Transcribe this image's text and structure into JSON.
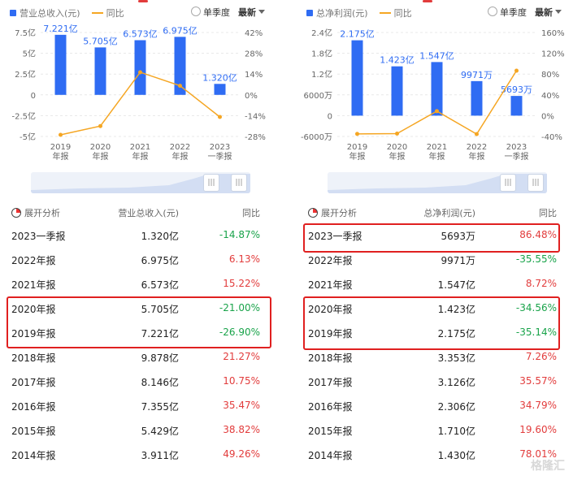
{
  "left": {
    "legend_bar": "营业总收入(元)",
    "legend_line": "同比",
    "radio_label": "单季度",
    "latest_label": "最新",
    "table_title": "展开分析",
    "table_col_value": "营业总收入(元)",
    "table_col_yoy": "同比",
    "rows": [
      {
        "period": "2023一季报",
        "value": "1.320亿",
        "yoy": "-14.87%",
        "sign": "neg"
      },
      {
        "period": "2022年报",
        "value": "6.975亿",
        "yoy": "6.13%",
        "sign": "pos"
      },
      {
        "period": "2021年报",
        "value": "6.573亿",
        "yoy": "15.22%",
        "sign": "pos"
      },
      {
        "period": "2020年报",
        "value": "5.705亿",
        "yoy": "-21.00%",
        "sign": "neg"
      },
      {
        "period": "2019年报",
        "value": "7.221亿",
        "yoy": "-26.90%",
        "sign": "neg"
      },
      {
        "period": "2018年报",
        "value": "9.878亿",
        "yoy": "21.27%",
        "sign": "pos"
      },
      {
        "period": "2017年报",
        "value": "8.146亿",
        "yoy": "10.75%",
        "sign": "pos"
      },
      {
        "period": "2016年报",
        "value": "7.355亿",
        "yoy": "35.47%",
        "sign": "pos"
      },
      {
        "period": "2015年报",
        "value": "5.429亿",
        "yoy": "38.82%",
        "sign": "pos"
      },
      {
        "period": "2014年报",
        "value": "3.911亿",
        "yoy": "49.26%",
        "sign": "pos"
      }
    ]
  },
  "right": {
    "legend_bar": "总净利润(元)",
    "legend_line": "同比",
    "radio_label": "单季度",
    "latest_label": "最新",
    "table_title": "展开分析",
    "table_col_value": "总净利润(元)",
    "table_col_yoy": "同比",
    "rows": [
      {
        "period": "2023一季报",
        "value": "5693万",
        "yoy": "86.48%",
        "sign": "pos"
      },
      {
        "period": "2022年报",
        "value": "9971万",
        "yoy": "-35.55%",
        "sign": "neg"
      },
      {
        "period": "2021年报",
        "value": "1.547亿",
        "yoy": "8.72%",
        "sign": "pos"
      },
      {
        "period": "2020年报",
        "value": "1.423亿",
        "yoy": "-34.56%",
        "sign": "neg"
      },
      {
        "period": "2019年报",
        "value": "2.175亿",
        "yoy": "-35.14%",
        "sign": "neg"
      },
      {
        "period": "2018年报",
        "value": "3.353亿",
        "yoy": "7.26%",
        "sign": "pos"
      },
      {
        "period": "2017年报",
        "value": "3.126亿",
        "yoy": "35.57%",
        "sign": "pos"
      },
      {
        "period": "2016年报",
        "value": "2.306亿",
        "yoy": "34.79%",
        "sign": "pos"
      },
      {
        "period": "2015年报",
        "value": "1.710亿",
        "yoy": "19.60%",
        "sign": "pos"
      },
      {
        "period": "2014年报",
        "value": "1.430亿",
        "yoy": "78.01%",
        "sign": "pos"
      }
    ]
  },
  "watermark": "格隆汇",
  "colors": {
    "bar": "#2f6cf3",
    "line": "#f5a623",
    "pos": "#e23c3c",
    "neg": "#19a34a",
    "highlight": "#e02020"
  },
  "chart_data": [
    {
      "type": "bar",
      "categories": [
        "2019\n年报",
        "2020\n年报",
        "2021\n年报",
        "2022\n年报",
        "2023\n一季报"
      ],
      "series": [
        {
          "name": "营业总收入(元)",
          "values": [
            7.221,
            5.705,
            6.573,
            6.975,
            1.32
          ],
          "labels": [
            "7.221亿",
            "5.705亿",
            "6.573亿",
            "6.975亿",
            "1.320亿"
          ],
          "unit": "亿"
        },
        {
          "name": "同比",
          "type": "line",
          "values": [
            -26.9,
            -21.0,
            15.22,
            6.13,
            -14.87
          ],
          "unit": "%"
        }
      ],
      "ylim_left": [
        -5,
        7.5
      ],
      "ylim_right": [
        -28,
        42
      ],
      "yticks_left": [
        "7.5亿",
        "5亿",
        "2.5亿",
        "0",
        "-2.5亿",
        "-5亿"
      ],
      "yticks_right": [
        "42%",
        "28%",
        "14%",
        "0%",
        "-14%",
        "-28%"
      ]
    },
    {
      "type": "bar",
      "categories": [
        "2019\n年报",
        "2020\n年报",
        "2021\n年报",
        "2022\n年报",
        "2023\n一季报"
      ],
      "series": [
        {
          "name": "总净利润(元)",
          "values": [
            21750,
            14230,
            15470,
            9971,
            5693
          ],
          "labels": [
            "2.175亿",
            "1.423亿",
            "1.547亿",
            "9971万",
            "5693万"
          ],
          "unit": "万"
        },
        {
          "name": "同比",
          "type": "line",
          "values": [
            -35.14,
            -34.56,
            8.72,
            -35.55,
            86.48
          ],
          "unit": "%"
        }
      ],
      "ylim_left": [
        -6000,
        24000
      ],
      "ylim_right": [
        -40,
        160
      ],
      "yticks_left": [
        "2.4亿",
        "1.8亿",
        "1.2亿",
        "6000万",
        "0",
        "-6000万"
      ],
      "yticks_right": [
        "160%",
        "120%",
        "80%",
        "40%",
        "0%",
        "-40%"
      ]
    }
  ]
}
